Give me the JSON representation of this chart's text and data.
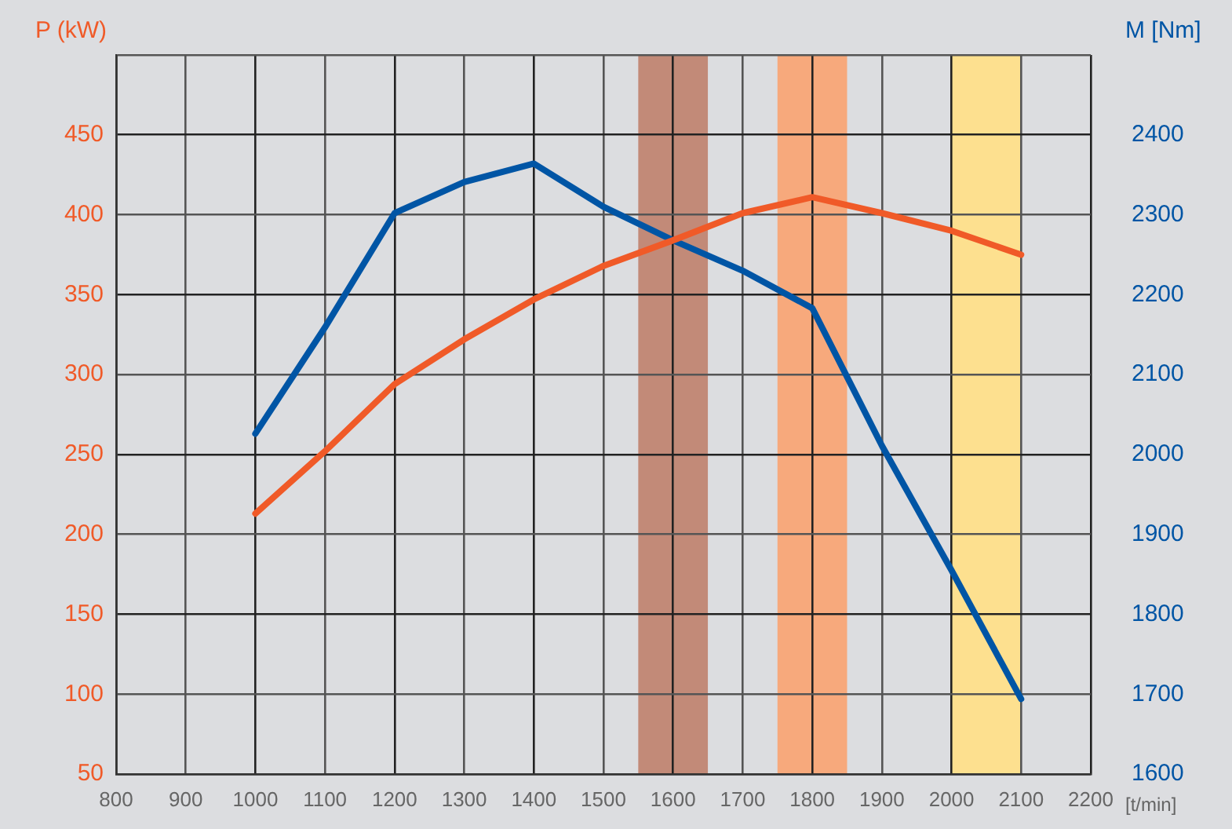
{
  "chart_data": {
    "type": "line",
    "xlabel": "[t/min]",
    "ylabel": "P (kW)",
    "y2label": "M [Nm]",
    "x": [
      1000,
      1100,
      1200,
      1300,
      1400,
      1500,
      1600,
      1700,
      1800,
      1900,
      2000,
      2100
    ],
    "series": [
      {
        "color": "#f05a28",
        "values": [
          213,
          252,
          294,
          322,
          347,
          368,
          384,
          401,
          411,
          401,
          390,
          375
        ]
      },
      {
        "color": "#0055a5",
        "axis": "y2",
        "values": [
          2026,
          2159,
          2302,
          2341,
          2364,
          2310,
          2268,
          2230,
          2183,
          2011,
          1855,
          1694
        ]
      }
    ],
    "xlim": [
      800,
      2200
    ],
    "xticks": [
      800,
      900,
      1000,
      1100,
      1200,
      1300,
      1400,
      1500,
      1600,
      1700,
      1800,
      1900,
      2000,
      2100,
      2200
    ],
    "ylim": [
      50,
      500
    ],
    "yticks": [
      50,
      100,
      150,
      200,
      250,
      300,
      350,
      400,
      450,
      {
        "value": 500,
        "label": null
      }
    ],
    "y2lim": [
      1600,
      2500
    ],
    "y2ticks": [
      1600,
      1700,
      1800,
      1900,
      2000,
      2100,
      2200,
      2300,
      2400
    ],
    "bands": [
      {
        "axis": "x",
        "from": 1550,
        "to": 1650,
        "color": "#c28a78"
      },
      {
        "axis": "x",
        "from": 1750,
        "to": 1850,
        "color": "#f7a97c"
      },
      {
        "axis": "x",
        "from": 2000,
        "to": 2100,
        "color": "#fde08f"
      }
    ],
    "grid": true,
    "legend": false,
    "marker": "none",
    "line_style": "solid"
  }
}
